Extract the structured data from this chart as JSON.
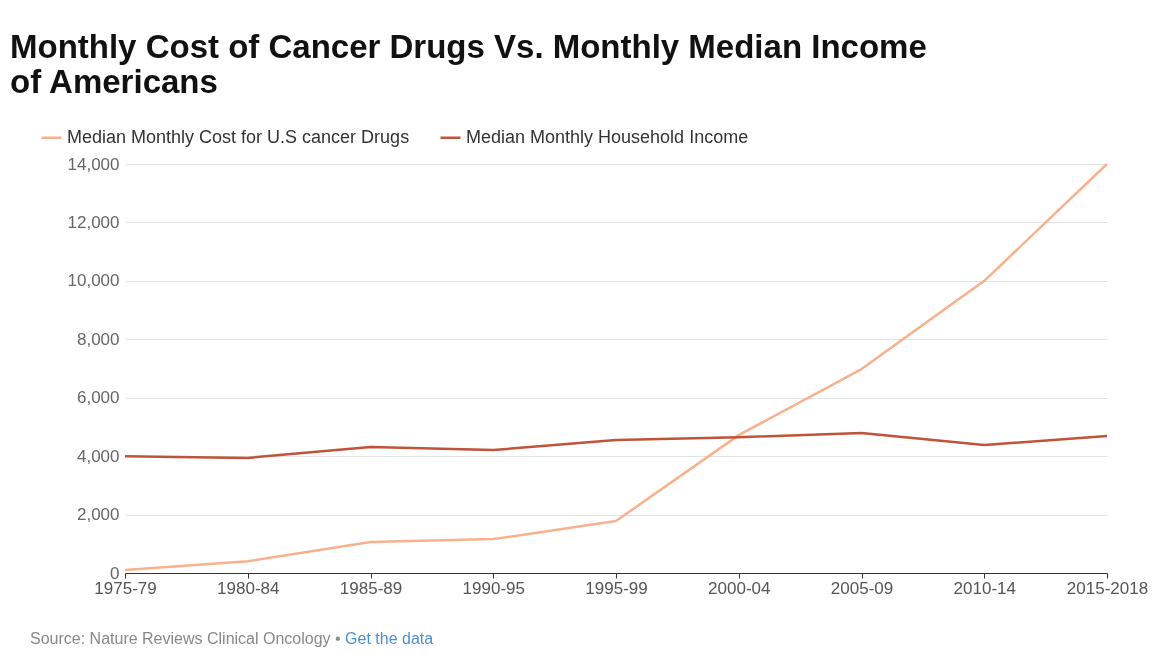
{
  "chart_data": {
    "type": "line",
    "title": "Monthly Cost of Cancer Drugs Vs. Monthly Median Income of Americans",
    "categories": [
      "1975-79",
      "1980-84",
      "1985-89",
      "1990-95",
      "1995-99",
      "2000-04",
      "2005-09",
      "2010-14",
      "2015-2018"
    ],
    "series": [
      {
        "name": "Median Monthly Cost for U.S cancer Drugs",
        "color": "#f9b08d",
        "values": [
          100,
          400,
          1060,
          1160,
          1780,
          4720,
          6980,
          10000,
          14000
        ]
      },
      {
        "name": "Median Monthly Household Income",
        "color": "#c0533a",
        "values": [
          4000,
          3940,
          4310,
          4210,
          4550,
          4650,
          4790,
          4380,
          4690
        ]
      }
    ],
    "ylim": [
      0,
      14000
    ],
    "yticks": [
      0,
      {
        "value": 2000,
        "label": "2,000"
      },
      {
        "value": 4000,
        "label": "4,000"
      },
      {
        "value": 6000,
        "label": "6,000"
      },
      {
        "value": 8000,
        "label": "8,000"
      },
      {
        "value": 10000,
        "label": "10,000"
      },
      {
        "value": 12000,
        "label": "12,000"
      },
      {
        "value": 14000,
        "label": "14,000"
      }
    ],
    "grid": "y",
    "legend": "top left",
    "marker": "none",
    "line_style": "solid",
    "annotations": [
      "Source: Nature Reviews Clinical Oncology • Get the data"
    ]
  }
}
